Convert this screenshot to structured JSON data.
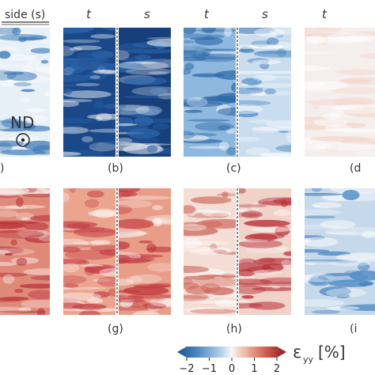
{
  "header": {
    "side_label": "side (s)",
    "t": "t",
    "s": "s"
  },
  "annotations": {
    "nd_label": "ND",
    "panel_labels": [
      ")",
      "(b)",
      "(c)",
      "(d",
      "",
      "(g)",
      "(h)",
      "(i"
    ]
  },
  "colorbar": {
    "symbol": "ε",
    "subscript": "yy",
    "unit": "[%]",
    "ticks": [
      "−2",
      "−1",
      "0",
      "1",
      "2"
    ],
    "range": [
      -2,
      2
    ],
    "colors": [
      "#1f4f8f",
      "#4a86c2",
      "#a9c9e6",
      "#f5f5f5",
      "#f1b8a3",
      "#cf5a4f",
      "#8b1a22"
    ]
  },
  "panels": {
    "top": [
      {
        "id": "a",
        "fields": [
          {
            "base": "#e7eff7",
            "band": "#3b77b6"
          }
        ]
      },
      {
        "id": "b",
        "fields": [
          {
            "base": "#1a4888",
            "band": "#2a63a8"
          },
          {
            "base": "#173f7c",
            "band": "#2c67ab"
          }
        ]
      },
      {
        "id": "c",
        "fields": [
          {
            "base": "#8eb8dd",
            "band": "#2f6aa9"
          },
          {
            "base": "#c9ddee",
            "band": "#4a86c2"
          }
        ]
      },
      {
        "id": "d",
        "fields": [
          {
            "base": "#f4eeec",
            "band": "#f3d6cc"
          }
        ]
      }
    ],
    "bottom": [
      {
        "id": "f",
        "fields": [
          {
            "base": "#df8a78",
            "band": "#b8303a"
          }
        ]
      },
      {
        "id": "g",
        "fields": [
          {
            "base": "#eba58f",
            "band": "#c6454a"
          },
          {
            "base": "#e89d88",
            "band": "#c0393f"
          }
        ]
      },
      {
        "id": "h",
        "fields": [
          {
            "base": "#f3ddd5",
            "band": "#d06a5e"
          },
          {
            "base": "#f0d2c8",
            "band": "#b8303a"
          }
        ]
      },
      {
        "id": "i",
        "fields": [
          {
            "base": "#c6d9ea",
            "band": "#4a86c2"
          }
        ]
      }
    ]
  }
}
